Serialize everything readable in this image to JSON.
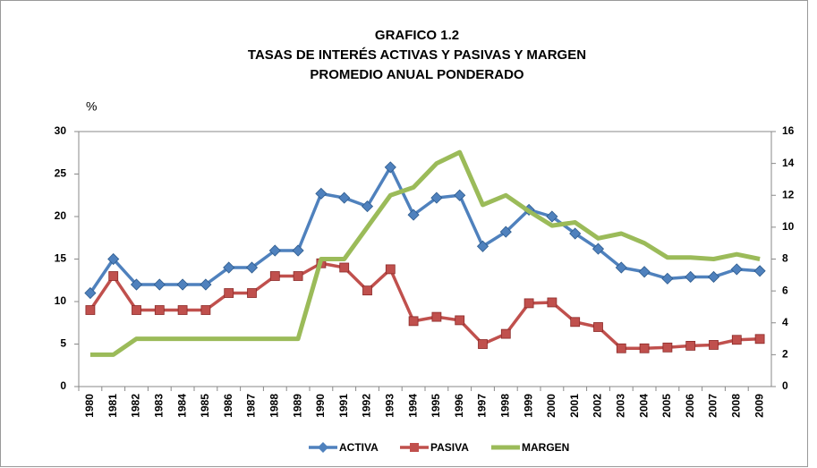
{
  "chart_data": {
    "type": "line",
    "title": [
      "GRAFICO 1.2",
      "TASAS DE INTERÉS ACTIVAS Y PASIVAS Y MARGEN",
      "PROMEDIO ANUAL PONDERADO"
    ],
    "y_label": "%",
    "categories": [
      "1980",
      "1981",
      "1982",
      "1983",
      "1984",
      "1985",
      "1986",
      "1987",
      "1988",
      "1989",
      "1990",
      "1991",
      "1992",
      "1993",
      "1994",
      "1995",
      "1996",
      "1997",
      "1998",
      "1999",
      "2000",
      "2001",
      "2002",
      "2003",
      "2004",
      "2005",
      "2006",
      "2007",
      "2008",
      "2009"
    ],
    "series": [
      {
        "name": "ACTIVA",
        "color": "#4f81bd",
        "marker": "diamond",
        "values": [
          11,
          15,
          12,
          12,
          12,
          12,
          14,
          14,
          16,
          16,
          22.7,
          22.2,
          21.2,
          25.8,
          20.2,
          22.2,
          22.5,
          16.5,
          18.2,
          20.8,
          20,
          18,
          16.2,
          14,
          13.5,
          12.7,
          12.9,
          12.9,
          13.8,
          13.6
        ]
      },
      {
        "name": "PASIVA",
        "color": "#c0504d",
        "marker": "square",
        "values": [
          9,
          13,
          9,
          9,
          9,
          9,
          11,
          11,
          13,
          13,
          14.5,
          14,
          11.3,
          13.8,
          7.7,
          8.2,
          7.8,
          5,
          6.2,
          9.8,
          9.9,
          7.6,
          7,
          4.5,
          4.5,
          4.6,
          4.8,
          4.9,
          5.5,
          5.6
        ]
      },
      {
        "name": "MARGEN",
        "color": "#9bbb59",
        "axis": "y2",
        "values": [
          2,
          2,
          3,
          3,
          3,
          3,
          3,
          3,
          3,
          3,
          8,
          8,
          10,
          12,
          12.5,
          14,
          14.7,
          11.4,
          12,
          11,
          10.1,
          10.3,
          9.3,
          9.6,
          9,
          8.1,
          8.1,
          8,
          8.3,
          8
        ]
      }
    ],
    "ylim": [
      0,
      30
    ],
    "yticks": [
      0,
      5,
      10,
      15,
      20,
      25,
      30
    ],
    "y2lim": [
      0,
      16
    ],
    "y2ticks": [
      0,
      2,
      4,
      6,
      8,
      10,
      12,
      14,
      16
    ],
    "legend": "bottom"
  }
}
